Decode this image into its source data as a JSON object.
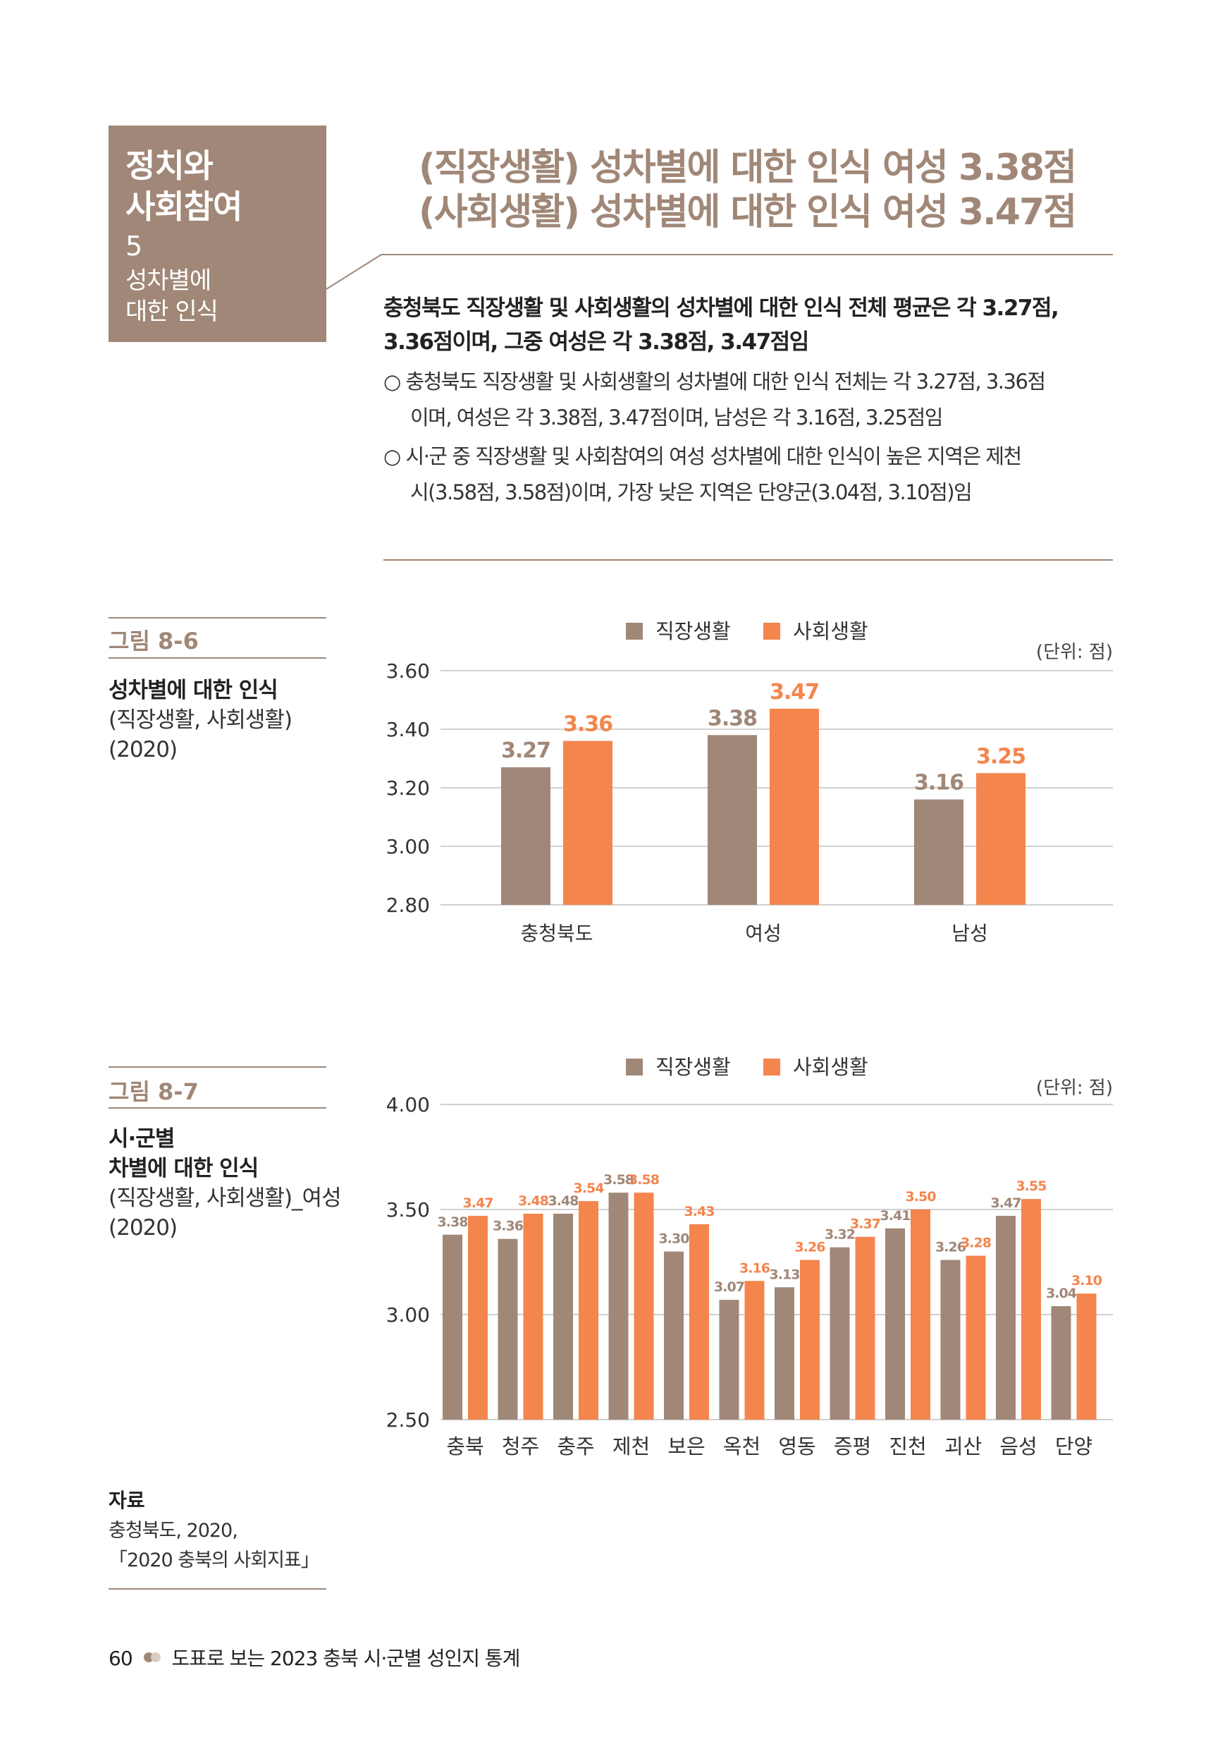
{
  "section": {
    "title_line1": "정치와",
    "title_line2": "사회참여",
    "number": "5",
    "sub_line1": "성차별에",
    "sub_line2": "대한 인식"
  },
  "headline": {
    "line1": "(직장생활) 성차별에 대한 인식 여성 3.38점",
    "line2": "(사회생활) 성차별에 대한 인식 여성 3.47점"
  },
  "summary": {
    "line1": "충청북도 직장생활 및 사회생활의 성차별에 대한 인식 전체 평균은 각 3.27점,",
    "line2": "3.36점이며, 그중 여성은 각 3.38점, 3.47점임"
  },
  "bullets": [
    {
      "line1": "○ 충청북도 직장생활 및 사회생활의 성차별에 대한 인식 전체는 각 3.27점, 3.36점",
      "line2": "이며, 여성은 각 3.38점, 3.47점이며, 남성은 각 3.16점, 3.25점임"
    },
    {
      "line1": "○ 시·군 중 직장생활 및 사회참여의 여성 성차별에 대한 인식이 높은 지역은 제천",
      "line2": "시(3.58점, 3.58점)이며, 가장 낮은 지역은 단양군(3.04점, 3.10점)임"
    }
  ],
  "figures": [
    {
      "label": "그림 8-6",
      "title": "성차별에 대한 인식",
      "sub1": "(직장생활, 사회생활)",
      "sub2": "(2020)"
    },
    {
      "label": "그림 8-7",
      "title1": "시·군별",
      "title2": "차별에 대한 인식",
      "sub1": "(직장생활, 사회생활)_여성",
      "sub2": "(2020)"
    }
  ],
  "source": {
    "label": "자료",
    "line1": "충청북도, 2020,",
    "line2": "「2020 충북의 사회지표」"
  },
  "footer": {
    "page": "60",
    "text": "도표로 보는 2023 충북 시·군별 성인지 통계"
  },
  "colors": {
    "brown": "#a08777",
    "orange": "#f4854d"
  },
  "chart_data": [
    {
      "type": "bar",
      "unit": "(단위: 점)",
      "legend_position": "top",
      "categories": [
        "충청북도",
        "여성",
        "남성"
      ],
      "ylim": [
        2.8,
        3.6
      ],
      "yticks": [
        "3.60",
        "3.40",
        "3.20",
        "3.00",
        "2.80"
      ],
      "grid": true,
      "series": [
        {
          "name": "직장생활",
          "color": "#a08777",
          "values": [
            3.27,
            3.38,
            3.16
          ]
        },
        {
          "name": "사회생활",
          "color": "#f4854d",
          "values": [
            3.36,
            3.47,
            3.25
          ]
        }
      ]
    },
    {
      "type": "bar",
      "unit": "(단위: 점)",
      "legend_position": "top",
      "categories": [
        "충북",
        "청주",
        "충주",
        "제천",
        "보은",
        "옥천",
        "영동",
        "증평",
        "진천",
        "괴산",
        "음성",
        "단양"
      ],
      "ylim": [
        2.5,
        4.0
      ],
      "yticks": [
        "4.00",
        "3.50",
        "3.00",
        "2.50"
      ],
      "grid": true,
      "series": [
        {
          "name": "직장생활",
          "color": "#a08777",
          "values": [
            3.38,
            3.36,
            3.48,
            3.58,
            3.3,
            3.07,
            3.13,
            3.32,
            3.41,
            3.26,
            3.47,
            3.04
          ]
        },
        {
          "name": "사회생활",
          "color": "#f4854d",
          "values": [
            3.47,
            3.48,
            3.54,
            3.58,
            3.43,
            3.16,
            3.26,
            3.37,
            3.5,
            3.28,
            3.55,
            3.1
          ]
        }
      ]
    }
  ]
}
